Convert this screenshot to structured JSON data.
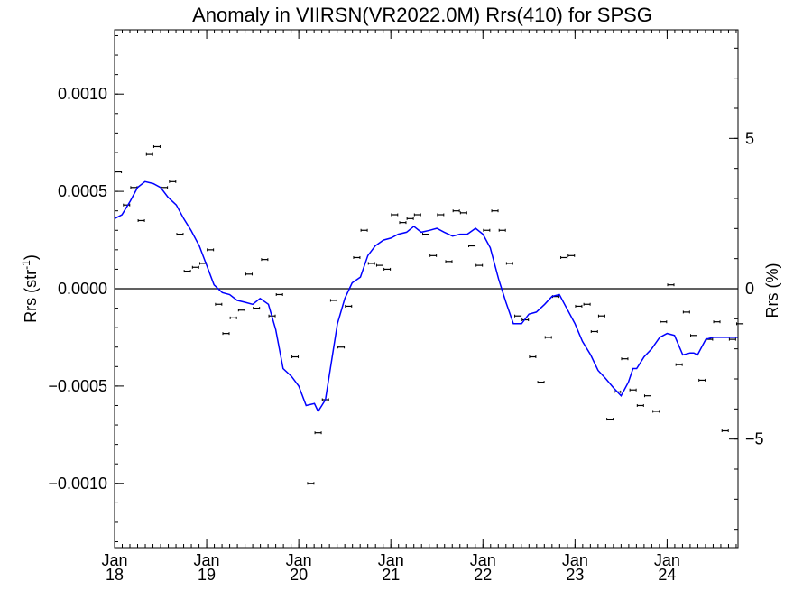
{
  "chart_data": {
    "type": "line",
    "title": "Anomaly in VIIRSN(VR2022.0M) Rrs(410) for SPSG",
    "ylabel": "Rrs (str",
    "ylabel_sup": "-1",
    "ylabel_close": ")",
    "y2label": "Rrs (%)",
    "ylim": [
      -0.00133,
      0.00133
    ],
    "y2lim": [
      -8.61,
      8.61
    ],
    "xlim": [
      2018.0,
      2024.77
    ],
    "grid": false,
    "yticks": [
      {
        "value": 0.001,
        "label": "0.0010"
      },
      {
        "value": 0.0005,
        "label": "0.0005"
      },
      {
        "value": 0.0,
        "label": "0.0000"
      },
      {
        "value": -0.0005,
        "label": "−0.0005"
      },
      {
        "value": -0.001,
        "label": "−0.0010"
      }
    ],
    "y2ticks": [
      {
        "value": 5,
        "label": "5"
      },
      {
        "value": 0,
        "label": "0"
      },
      {
        "value": -5,
        "label": "−5"
      }
    ],
    "xticks": [
      {
        "value": 2018.0,
        "month": "Jan",
        "year": "18"
      },
      {
        "value": 2019.0,
        "month": "Jan",
        "year": "19"
      },
      {
        "value": 2020.0,
        "month": "Jan",
        "year": "20"
      },
      {
        "value": 2021.0,
        "month": "Jan",
        "year": "21"
      },
      {
        "value": 2022.0,
        "month": "Jan",
        "year": "22"
      },
      {
        "value": 2023.0,
        "month": "Jan",
        "year": "23"
      },
      {
        "value": 2024.0,
        "month": "Jan",
        "year": "24"
      }
    ],
    "series": [
      {
        "kind": "points",
        "color": "#000000",
        "x": [
          2018.04,
          2018.13,
          2018.21,
          2018.29,
          2018.38,
          2018.46,
          2018.54,
          2018.63,
          2018.71,
          2018.79,
          2018.88,
          2018.96,
          2019.04,
          2019.13,
          2019.21,
          2019.29,
          2019.38,
          2019.46,
          2019.54,
          2019.63,
          2019.71,
          2019.79,
          2019.96,
          2020.13,
          2020.21,
          2020.29,
          2020.38,
          2020.46,
          2020.54,
          2020.63,
          2020.71,
          2020.79,
          2020.88,
          2020.96,
          2021.04,
          2021.13,
          2021.21,
          2021.29,
          2021.38,
          2021.46,
          2021.54,
          2021.63,
          2021.71,
          2021.79,
          2021.88,
          2021.96,
          2022.04,
          2022.13,
          2022.21,
          2022.29,
          2022.38,
          2022.46,
          2022.54,
          2022.63,
          2022.71,
          2022.79,
          2022.88,
          2022.96,
          2023.04,
          2023.13,
          2023.21,
          2023.29,
          2023.38,
          2023.46,
          2023.54,
          2023.63,
          2023.71,
          2023.79,
          2023.88,
          2023.96,
          2024.04,
          2024.13,
          2024.21,
          2024.29,
          2024.38,
          2024.46,
          2024.54,
          2024.63,
          2024.71,
          2024.79
        ],
        "y": [
          0.0006,
          0.00043,
          0.00052,
          0.00035,
          0.00069,
          0.00073,
          0.00052,
          0.00055,
          0.00028,
          9e-05,
          0.00011,
          0.00013,
          0.0002,
          -8e-05,
          -0.00023,
          -0.00015,
          -0.00011,
          7.5e-05,
          -0.0001,
          0.00015,
          -0.00014,
          -3e-05,
          -0.00035,
          -0.001,
          -0.00074,
          -0.00057,
          -6e-05,
          -0.0003,
          -9e-05,
          0.00016,
          0.0003,
          0.00013,
          0.00012,
          0.0001,
          0.00038,
          0.00034,
          0.00036,
          0.00038,
          0.00028,
          0.00017,
          0.00038,
          0.00014,
          0.0004,
          0.00039,
          0.00022,
          0.00012,
          0.0003,
          0.0004,
          0.0003,
          0.00013,
          -0.00014,
          -0.00016,
          -0.00035,
          -0.00048,
          -0.00025,
          -4e-05,
          0.00016,
          0.00017,
          -9e-05,
          -8e-05,
          -0.00022,
          -0.00014,
          -0.00067,
          -0.00053,
          -0.00036,
          -0.00052,
          -0.0006,
          -0.00055,
          -0.00063,
          -0.00017,
          2e-05,
          -0.00039,
          -0.00012,
          -0.00024,
          -0.00047,
          -0.00026,
          -0.00017,
          -0.00073,
          -0.00026,
          -0.00018
        ]
      },
      {
        "kind": "line",
        "color": "#0000ff",
        "x": [
          2018.0,
          2018.08,
          2018.17,
          2018.25,
          2018.33,
          2018.42,
          2018.5,
          2018.58,
          2018.67,
          2018.75,
          2018.83,
          2018.92,
          2019.0,
          2019.08,
          2019.17,
          2019.25,
          2019.33,
          2019.42,
          2019.5,
          2019.58,
          2019.67,
          2019.75,
          2019.83,
          2019.92,
          2020.0,
          2020.08,
          2020.17,
          2020.21,
          2020.25,
          2020.29,
          2020.33,
          2020.42,
          2020.5,
          2020.58,
          2020.67,
          2020.75,
          2020.83,
          2020.92,
          2021.0,
          2021.08,
          2021.17,
          2021.25,
          2021.33,
          2021.42,
          2021.5,
          2021.58,
          2021.67,
          2021.75,
          2021.83,
          2021.92,
          2022.0,
          2022.08,
          2022.17,
          2022.25,
          2022.33,
          2022.42,
          2022.5,
          2022.58,
          2022.67,
          2022.75,
          2022.83,
          2022.92,
          2023.0,
          2023.08,
          2023.17,
          2023.25,
          2023.33,
          2023.42,
          2023.5,
          2023.58,
          2023.63,
          2023.67,
          2023.75,
          2023.83,
          2023.92,
          2024.0,
          2024.08,
          2024.17,
          2024.25,
          2024.29,
          2024.33,
          2024.42,
          2024.5,
          2024.58,
          2024.67,
          2024.75,
          2024.77
        ],
        "y": [
          0.00036,
          0.00038,
          0.00045,
          0.00052,
          0.00055,
          0.00054,
          0.00052,
          0.00047,
          0.00043,
          0.00036,
          0.0003,
          0.00022,
          0.00012,
          2e-05,
          -2e-05,
          -3e-05,
          -6e-05,
          -7e-05,
          -8e-05,
          -5e-05,
          -8e-05,
          -0.00021,
          -0.00041,
          -0.00045,
          -0.0005,
          -0.0006,
          -0.00059,
          -0.00063,
          -0.0006,
          -0.00057,
          -0.00045,
          -0.00018,
          -5e-05,
          3e-05,
          6e-05,
          0.00017,
          0.00022,
          0.00025,
          0.00026,
          0.00028,
          0.00029,
          0.00032,
          0.00029,
          0.0003,
          0.00031,
          0.00029,
          0.00027,
          0.00028,
          0.00028,
          0.00031,
          0.00028,
          0.00021,
          5e-05,
          -7e-05,
          -0.00018,
          -0.00018,
          -0.00013,
          -0.00012,
          -8e-05,
          -4e-05,
          -3e-05,
          -0.00011,
          -0.00018,
          -0.00027,
          -0.00034,
          -0.00042,
          -0.00046,
          -0.00051,
          -0.00055,
          -0.00048,
          -0.00041,
          -0.00041,
          -0.00035,
          -0.00031,
          -0.00025,
          -0.00023,
          -0.00024,
          -0.00034,
          -0.00033,
          -0.00033,
          -0.00034,
          -0.00026,
          -0.00025,
          -0.00025,
          -0.00025,
          -0.00025,
          -0.00025
        ]
      }
    ]
  }
}
